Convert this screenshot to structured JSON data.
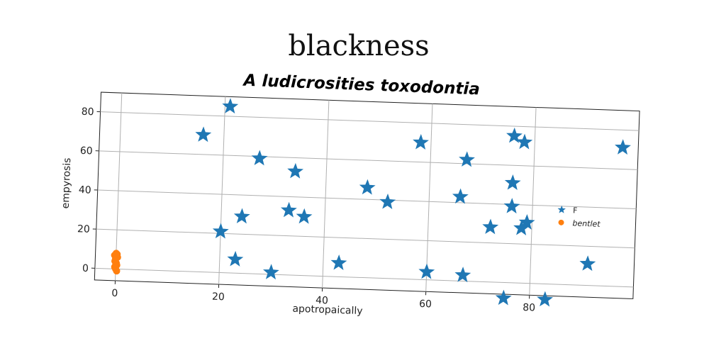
{
  "suptitle": "blackness",
  "chart_data": {
    "type": "scatter",
    "title": "A ludicrosities toxodontia",
    "xlabel": "apotropaically",
    "ylabel": "empyrosis",
    "xlim": [
      -4,
      100
    ],
    "ylim": [
      -6,
      90
    ],
    "xticks": [
      0,
      20,
      40,
      60,
      80
    ],
    "yticks": [
      0,
      20,
      40,
      60,
      80
    ],
    "grid": true,
    "legend_position": "right",
    "series": [
      {
        "name": "F",
        "marker": "star",
        "color": "#1f77b4",
        "points": [
          [
            16,
            70
          ],
          [
            21,
            85
          ],
          [
            27,
            59
          ],
          [
            34,
            53
          ],
          [
            48,
            46
          ],
          [
            52,
            39
          ],
          [
            58,
            70
          ],
          [
            67,
            62
          ],
          [
            66,
            43
          ],
          [
            76,
            75
          ],
          [
            78,
            72
          ],
          [
            76,
            51
          ],
          [
            76,
            39
          ],
          [
            79,
            31
          ],
          [
            78,
            28
          ],
          [
            72,
            28
          ],
          [
            97,
            71
          ],
          [
            24,
            29
          ],
          [
            20,
            21
          ],
          [
            33,
            33
          ],
          [
            36,
            30
          ],
          [
            23,
            7
          ],
          [
            30,
            1
          ],
          [
            43,
            7
          ],
          [
            60,
            4
          ],
          [
            67,
            3
          ],
          [
            75,
            -8
          ],
          [
            83,
            -8
          ],
          [
            91,
            11
          ]
        ]
      },
      {
        "name": "bentlet",
        "marker": "circle",
        "color": "#ff7f0e",
        "points": [
          [
            0,
            0
          ],
          [
            0.2,
            2
          ],
          [
            -0.2,
            4
          ],
          [
            0.3,
            6
          ],
          [
            -0.3,
            7
          ],
          [
            0,
            8
          ],
          [
            0.2,
            -1
          ],
          [
            -0.2,
            1
          ],
          [
            0.1,
            3
          ],
          [
            -0.1,
            5
          ],
          [
            0.2,
            7.5
          ],
          [
            0,
            2.5
          ]
        ]
      }
    ]
  }
}
